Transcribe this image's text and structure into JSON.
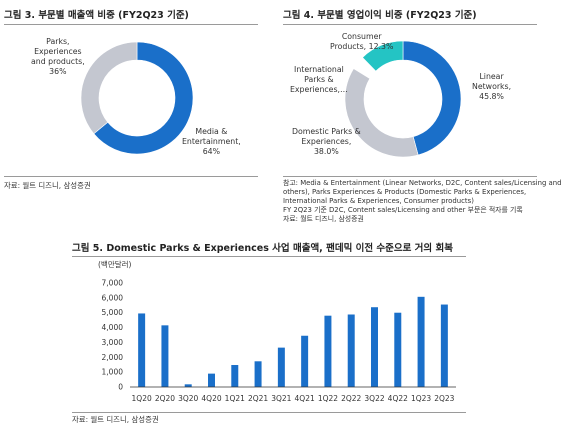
{
  "chart_data": [
    {
      "type": "pie",
      "title": "그림 3. 부문별 매출액 비중 (FY2Q23 기준)",
      "labels": [
        "Media & Entertainment",
        "Parks, Experiences and products"
      ],
      "display_labels": [
        [
          "Media &",
          "Entertainment,",
          "64%"
        ],
        [
          "Parks,",
          "Experiences",
          "and products,",
          "36%"
        ]
      ],
      "values": [
        64,
        36
      ],
      "colors": [
        "#1a6fc9",
        "#c4c7d0"
      ],
      "source": "자료: 월트 디즈니, 삼성증권"
    },
    {
      "type": "pie",
      "title": "그림 4. 부문별 영업이익 비중 (FY2Q23 기준)",
      "labels": [
        "Linear Networks",
        "Domestic Parks & Experiences",
        "International Parks & Experiences",
        "Consumer Products"
      ],
      "display_labels": [
        [
          "Linear",
          "Networks,",
          "45.8%"
        ],
        [
          "Domestic Parks &",
          "Experiences,",
          "38.0%"
        ],
        [
          "International",
          "Parks &",
          "Experiences,…"
        ],
        [
          "Consumer",
          "Products, 12.3%"
        ]
      ],
      "values": [
        45.8,
        38.0,
        3.9,
        12.3
      ],
      "colors": [
        "#1a6fc9",
        "#c4c7d0",
        "#ffffff",
        "#24c4c4"
      ],
      "notes": [
        "참고: Media & Entertainment (Linear Networks, D2C, Content sales/Licensing and",
        "others), Parks Experiences & Products (Domestic Parks & Experiences,",
        "International Parks & Experiences, Consumer products)",
        "FY 2Q23 기준 D2C, Content sales/Licensing and other 부문은 적자를 기록",
        "자료: 월트 디즈니, 삼성증권"
      ]
    },
    {
      "type": "bar",
      "title": "그림 5. Domestic Parks & Experiences 사업 매출액, 팬데믹 이전 수준으로 거의 회복",
      "ylabel": "(백만달러)",
      "categories": [
        "1Q20",
        "2Q20",
        "3Q20",
        "4Q20",
        "1Q21",
        "2Q21",
        "3Q21",
        "4Q21",
        "1Q22",
        "2Q22",
        "3Q22",
        "4Q22",
        "1Q23",
        "2Q23"
      ],
      "values": [
        4950,
        4150,
        180,
        900,
        1480,
        1730,
        2650,
        3450,
        4800,
        4880,
        5370,
        5000,
        6070,
        5550
      ],
      "ylim": [
        0,
        7000
      ],
      "yticks": [
        "0",
        "1,000",
        "2,000",
        "3,000",
        "4,000",
        "5,000",
        "6,000",
        "7,000"
      ],
      "bar_color": "#1a6fc9",
      "grid": false,
      "source": "자료: 월트 디즈니, 삼성증권"
    }
  ]
}
